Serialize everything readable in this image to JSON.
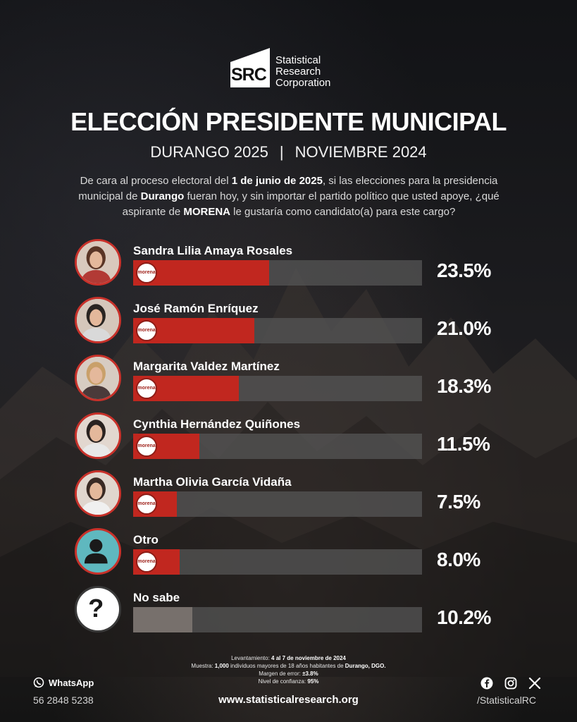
{
  "brand": {
    "abbr": "SRC",
    "name_lines": [
      "Statistical",
      "Research",
      "Corporation"
    ]
  },
  "header": {
    "title": "ELECCIÓN PRESIDENTE MUNICIPAL",
    "place": "DURANGO 2025",
    "separator": "|",
    "date": "NOVIEMBRE 2024"
  },
  "question": {
    "p1": "De cara al proceso electoral del ",
    "b1": "1 de junio de 2025",
    "p2": ", si las elecciones para la presidencia municipal de ",
    "b2": "Durango",
    "p3": " fueran hoy, y sin importar el partido político que usted apoye, ¿qué aspirante de ",
    "b3": "MORENA",
    "p4": " le gustaría como candidato(a) para este cargo?"
  },
  "party_badge": "morena",
  "colors": {
    "bar_fill": "#c1271f",
    "bar_track": "#555555",
    "no_sabe_fill": "#77706c",
    "accent_ring": "#c8312a"
  },
  "chart_data": {
    "type": "bar",
    "orientation": "horizontal",
    "categories": [
      "Sandra Lilia Amaya Rosales",
      "José Ramón Enríquez",
      "Margarita Valdez Martínez",
      "Cynthia Hernández Quiñones",
      "Martha Olivia García Vidaña",
      "Otro",
      "No sabe"
    ],
    "values": [
      23.5,
      21.0,
      18.3,
      11.5,
      7.5,
      8.0,
      10.2
    ],
    "labels": [
      "23.5%",
      "21.0%",
      "18.3%",
      "11.5%",
      "7.5%",
      "8.0%",
      "10.2%"
    ],
    "xlim": [
      0,
      50
    ],
    "grid": false
  },
  "footer": {
    "notes": [
      {
        "label": "Levantamiento: ",
        "value": "4 al 7 de noviembre de 2024",
        "tail": ""
      },
      {
        "label": "Muestra: ",
        "value": "1,000",
        "tail": " individuos mayores de 18 años habitantes de ",
        "value2": "Durango, DGO."
      },
      {
        "label": "Margen de error: ",
        "value": "±3.8%",
        "tail": ""
      },
      {
        "label": "Nivel de confianza: ",
        "value": "95%",
        "tail": ""
      }
    ],
    "whatsapp_label": "WhatsApp",
    "phone": "56 2848 5238",
    "website": "www.statisticalresearch.org",
    "handle": "/StatisticalRC",
    "social_icons": [
      "facebook-icon",
      "instagram-icon",
      "x-icon"
    ]
  }
}
